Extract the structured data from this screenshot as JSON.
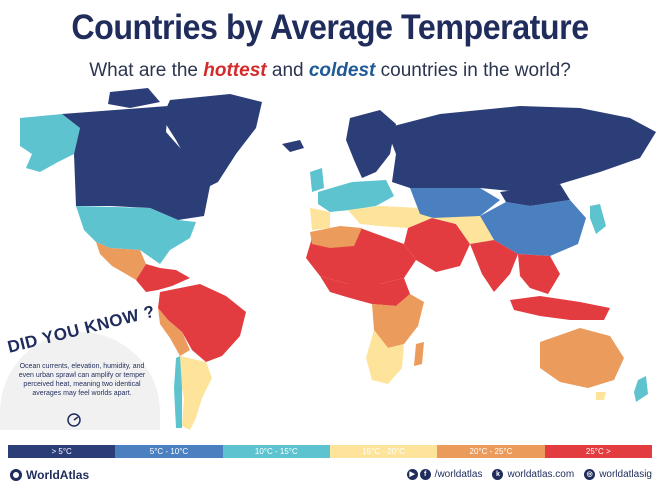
{
  "header": {
    "title": "Countries by Average Temperature",
    "subtitle_before": "What are the ",
    "subtitle_hot": "hottest",
    "subtitle_mid": " and ",
    "subtitle_cold": "coldest",
    "subtitle_after": " countries in the world?"
  },
  "colors": {
    "band1": "#2c3e78",
    "band2": "#4a7fc0",
    "band3": "#5cc3cf",
    "band4": "#fde49a",
    "band5": "#eb9b5c",
    "band6": "#e33c40",
    "ocean": "#ffffff"
  },
  "legend": {
    "items": [
      {
        "label": "> 5°C",
        "color": "#2c3e78"
      },
      {
        "label": "5°C - 10°C",
        "color": "#4a7fc0"
      },
      {
        "label": "10°C - 15°C",
        "color": "#5cc3cf"
      },
      {
        "label": "15°C - 20°C",
        "color": "#fde49a"
      },
      {
        "label": "20°C - 25°C",
        "color": "#eb9b5c"
      },
      {
        "label": "25°C >",
        "color": "#e33c40"
      }
    ]
  },
  "did_you_know": {
    "title": "DID YOU KNOW ?",
    "text": "Ocean currents, elevation, humidity, and even urban sprawl can amplify or temper perceived heat, meaning two identical averages may feel worlds apart."
  },
  "footer": {
    "brand": "WorldAtlas",
    "social1": "/worldatlas",
    "social2": "worldatlas.com",
    "social3": "worldatlasig"
  }
}
